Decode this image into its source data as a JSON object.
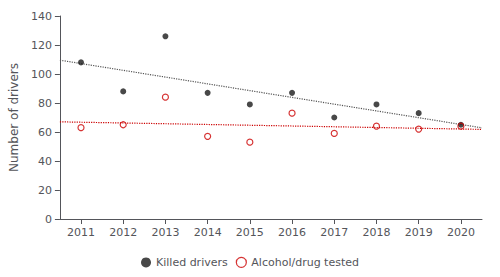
{
  "chart_data": {
    "type": "scatter",
    "ylabel": "Number of drivers",
    "xlim": [
      2010.5,
      2020.5
    ],
    "xticks": [
      2011,
      2012,
      2013,
      2014,
      2015,
      2016,
      2017,
      2018,
      2019,
      2020
    ],
    "ylim": [
      0,
      140
    ],
    "yticks": [
      0,
      20,
      40,
      60,
      80,
      100,
      120,
      140
    ],
    "grid": false,
    "legend": "bottom",
    "series": [
      {
        "type": "line",
        "line_style": "dotted",
        "color": "#555555",
        "x": [
          2010.5,
          2020.5
        ],
        "values": [
          109.53333333333333,
          62.86666666666667
        ]
      },
      {
        "type": "line",
        "line_style": "dotted",
        "color": "#cc0000",
        "x": [
          2010.5,
          2020.5
        ],
        "values": [
          67.00606060606061,
          61.79393939393939
        ]
      },
      {
        "type": "scatter",
        "name": "Killed drivers",
        "marker": "circle",
        "color": "#1a1a1a",
        "x": [
          2011,
          2012,
          2013,
          2014,
          2015,
          2016,
          2017,
          2018,
          2019,
          2020
        ],
        "values": [
          108,
          88,
          126,
          87,
          79,
          87,
          70,
          79,
          73,
          65
        ]
      },
      {
        "type": "scatter",
        "name": "Alcohol/drug tested",
        "marker": "open_circle",
        "color": "#cc0000",
        "x": [
          2011,
          2012,
          2013,
          2014,
          2015,
          2016,
          2017,
          2018,
          2019,
          2020
        ],
        "values": [
          63,
          65,
          84,
          57,
          53,
          73,
          59,
          64,
          62,
          64
        ]
      }
    ]
  }
}
